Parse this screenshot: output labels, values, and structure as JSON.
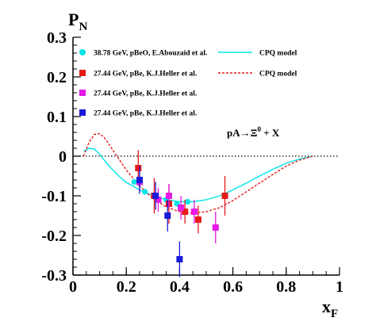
{
  "chart_data": {
    "type": "scatter",
    "title": "",
    "xlabel_main": "x",
    "xlabel_sub": "F",
    "ylabel_main": "P",
    "ylabel_sub": "N",
    "xlim": [
      0,
      1
    ],
    "ylim": [
      -0.3,
      0.3
    ],
    "x_ticks": [
      0,
      0.2,
      0.4,
      0.6,
      0.8,
      1
    ],
    "x_tick_labels": [
      "0",
      "0.2",
      "0.4",
      "0.6",
      "0.8",
      "1"
    ],
    "y_ticks": [
      -0.3,
      -0.2,
      -0.1,
      0,
      0.1,
      0.2,
      0.3
    ],
    "y_tick_labels": [
      "-0.3",
      "-0.2",
      "-0.1",
      "0",
      "0.1",
      "0.2",
      "0.3"
    ],
    "zero_line": true,
    "annotation": {
      "prefix": "pA",
      "arrow": "→",
      "particle": "Ξ",
      "superscript": "0",
      "suffix": " + X"
    },
    "legend_position": "top",
    "series": [
      {
        "name": "38.78 GeV, pBeO, E.Abouzaid et al.",
        "marker": "circle",
        "color": "#00e6e6",
        "points": [
          {
            "x": 0.23,
            "y": -0.065,
            "err": 0.0
          },
          {
            "x": 0.27,
            "y": -0.09,
            "err": 0.005
          },
          {
            "x": 0.31,
            "y": -0.1,
            "err": 0.005
          },
          {
            "x": 0.35,
            "y": -0.11,
            "err": 0.005
          },
          {
            "x": 0.39,
            "y": -0.12,
            "err": 0.005
          },
          {
            "x": 0.43,
            "y": -0.115,
            "err": 0.005
          }
        ]
      },
      {
        "name": "27.44 GeV, pBe, K.J.Heller et al.",
        "marker": "square",
        "color": "#e61919",
        "points": [
          {
            "x": 0.245,
            "y": -0.03,
            "err": 0.045
          },
          {
            "x": 0.305,
            "y": -0.1,
            "err": 0.045
          },
          {
            "x": 0.36,
            "y": -0.12,
            "err": 0.05
          },
          {
            "x": 0.42,
            "y": -0.14,
            "err": 0.03
          },
          {
            "x": 0.47,
            "y": -0.16,
            "err": 0.035
          },
          {
            "x": 0.57,
            "y": -0.1,
            "err": 0.05
          }
        ]
      },
      {
        "name": "27.44 GeV, pBe, K.J.Heller et al.",
        "marker": "square",
        "color": "#e619e6",
        "points": [
          {
            "x": 0.25,
            "y": -0.065,
            "err": 0.025
          },
          {
            "x": 0.32,
            "y": -0.11,
            "err": 0.03
          },
          {
            "x": 0.36,
            "y": -0.1,
            "err": 0.03
          },
          {
            "x": 0.405,
            "y": -0.13,
            "err": 0.03
          },
          {
            "x": 0.455,
            "y": -0.14,
            "err": 0.03
          },
          {
            "x": 0.535,
            "y": -0.18,
            "err": 0.04
          }
        ]
      },
      {
        "name": "27.44 GeV, pBe, K.J.Heller et al.",
        "marker": "square",
        "color": "#1a1ad9",
        "points": [
          {
            "x": 0.25,
            "y": -0.06,
            "err": 0.035
          },
          {
            "x": 0.31,
            "y": -0.1,
            "err": 0.035
          },
          {
            "x": 0.355,
            "y": -0.15,
            "err": 0.04
          },
          {
            "x": 0.4,
            "y": -0.26,
            "err": 0.045
          }
        ]
      }
    ],
    "curves": [
      {
        "name": "CPQ model",
        "style": "solid",
        "color": "#00e6e6",
        "x": [
          0.04,
          0.06,
          0.08,
          0.1,
          0.12,
          0.14,
          0.16,
          0.18,
          0.2,
          0.25,
          0.3,
          0.35,
          0.4,
          0.45,
          0.5,
          0.55,
          0.6,
          0.65,
          0.7,
          0.75,
          0.8,
          0.85,
          0.9
        ],
        "y": [
          0.012,
          0.02,
          0.018,
          0.005,
          -0.012,
          -0.028,
          -0.042,
          -0.055,
          -0.066,
          -0.085,
          -0.1,
          -0.11,
          -0.115,
          -0.115,
          -0.11,
          -0.1,
          -0.085,
          -0.068,
          -0.05,
          -0.033,
          -0.018,
          -0.007,
          0.0
        ]
      },
      {
        "name": "CPQ model",
        "style": "dashed",
        "color": "#e61919",
        "x": [
          0.04,
          0.06,
          0.08,
          0.1,
          0.12,
          0.14,
          0.16,
          0.18,
          0.2,
          0.25,
          0.3,
          0.35,
          0.4,
          0.45,
          0.5,
          0.55,
          0.6,
          0.65,
          0.7,
          0.75,
          0.8,
          0.85,
          0.9
        ],
        "y": [
          0.0,
          0.035,
          0.055,
          0.057,
          0.045,
          0.025,
          0.005,
          -0.015,
          -0.035,
          -0.075,
          -0.107,
          -0.128,
          -0.14,
          -0.144,
          -0.14,
          -0.13,
          -0.112,
          -0.09,
          -0.068,
          -0.046,
          -0.025,
          -0.01,
          0.0
        ]
      }
    ]
  }
}
